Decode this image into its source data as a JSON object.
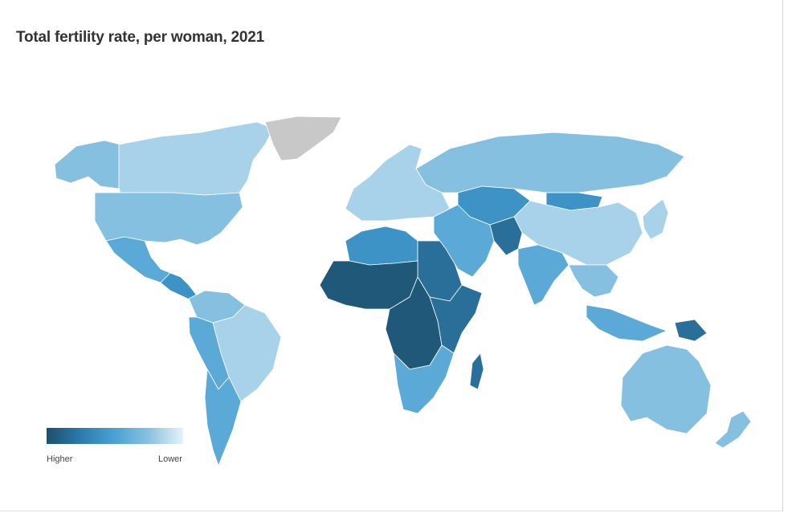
{
  "title": "Total fertility rate, per woman, 2021",
  "legend": {
    "high_label": "Higher",
    "low_label": "Lower",
    "colors": [
      "#1d4f6e",
      "#2c7bab",
      "#4aa3d3",
      "#89c2e0",
      "#e6f2fa"
    ]
  },
  "colors": {
    "very_high": "#1f5878",
    "high": "#2a6f99",
    "mid_high": "#3d93c6",
    "mid": "#5aa9d6",
    "low": "#86c0e0",
    "very_low": "#a8d2ea",
    "no_data": "#c8c8c8"
  },
  "regions": [
    {
      "name": "Canada",
      "level": "very_low"
    },
    {
      "name": "Alaska",
      "level": "low"
    },
    {
      "name": "United States",
      "level": "low"
    },
    {
      "name": "Mexico",
      "level": "mid"
    },
    {
      "name": "Central America",
      "level": "mid_high"
    },
    {
      "name": "Greenland",
      "level": "no_data"
    },
    {
      "name": "Colombia / Venezuela",
      "level": "low"
    },
    {
      "name": "Brazil",
      "level": "very_low"
    },
    {
      "name": "Andean countries",
      "level": "mid"
    },
    {
      "name": "Argentina / Chile",
      "level": "mid"
    },
    {
      "name": "Europe",
      "level": "very_low"
    },
    {
      "name": "Russia",
      "level": "low"
    },
    {
      "name": "Kazakhstan / Central Asia",
      "level": "mid_high"
    },
    {
      "name": "Mongolia",
      "level": "mid_high"
    },
    {
      "name": "China",
      "level": "very_low"
    },
    {
      "name": "North Africa",
      "level": "mid_high"
    },
    {
      "name": "Egypt / Sudan",
      "level": "high"
    },
    {
      "name": "West Africa",
      "level": "very_high"
    },
    {
      "name": "Central Africa",
      "level": "very_high"
    },
    {
      "name": "East Africa",
      "level": "high"
    },
    {
      "name": "Southern Africa",
      "level": "mid"
    },
    {
      "name": "Madagascar",
      "level": "high"
    },
    {
      "name": "Middle East",
      "level": "mid"
    },
    {
      "name": "Afghanistan / Pakistan",
      "level": "high"
    },
    {
      "name": "India",
      "level": "mid"
    },
    {
      "name": "Southeast Asia",
      "level": "low"
    },
    {
      "name": "Indonesia",
      "level": "mid"
    },
    {
      "name": "Papua New Guinea",
      "level": "high"
    },
    {
      "name": "Australia",
      "level": "low"
    },
    {
      "name": "New Zealand",
      "level": "low"
    },
    {
      "name": "Japan / Korea",
      "level": "very_low"
    }
  ]
}
